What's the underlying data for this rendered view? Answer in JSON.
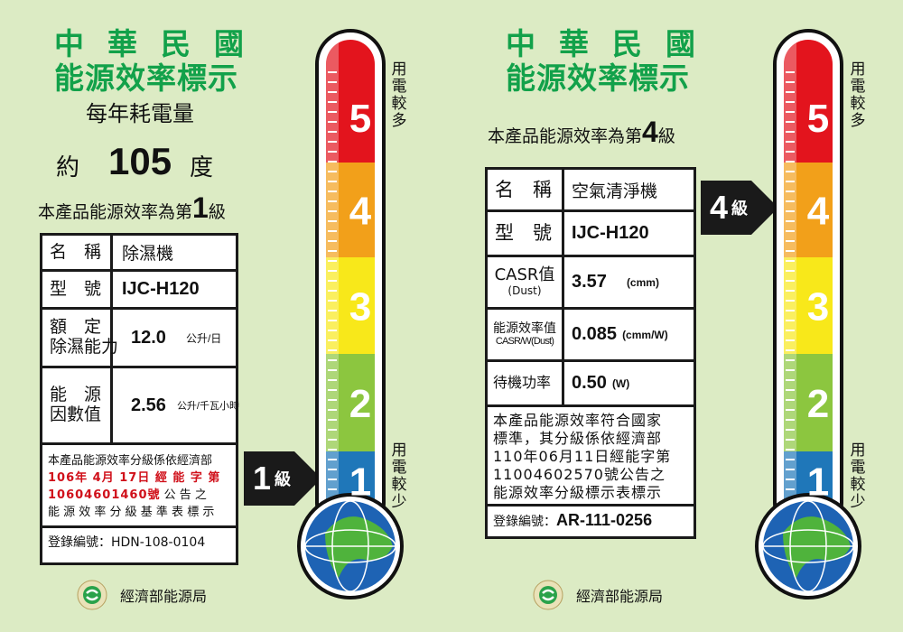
{
  "left": {
    "title_line1": "中華民國",
    "title_line2": "能源效率標示",
    "annual_label": "每年耗電量",
    "approx": "約",
    "annual_value": "105",
    "annual_unit": "度",
    "grade_prefix": "本產品能源效率為第",
    "grade": "1",
    "grade_suffix": "級",
    "rows": [
      {
        "label": "名　稱",
        "value": "除濕機"
      },
      {
        "label": "型　號",
        "value": "IJC-H120"
      },
      {
        "label1": "額　定",
        "label2": "除濕能力",
        "value": "12.0",
        "unit": "公升/日"
      },
      {
        "label1": "能　源",
        "label2": "因數值",
        "value": "2.56",
        "unit": "公升/千瓦小時"
      }
    ],
    "announce": {
      "line1": "本產品能源效率分級係依經濟部",
      "line2": "106年 4月 17日 經 能 字 第",
      "line3a": "10604601460號",
      "line3b": " 公 告 之",
      "line4": "能 源 效 率 分 級 基 準 表 標 示"
    },
    "registration": "登錄編號：HDN-108-0104",
    "arrow_grade": "1",
    "arrow_suffix": "級",
    "footer": "經濟部能源局"
  },
  "right": {
    "title_line1": "中華民國",
    "title_line2": "能源效率標示",
    "grade_prefix": "本產品能源效率為第",
    "grade": "4",
    "grade_suffix": "級",
    "rows": [
      {
        "label": "名　稱",
        "value": "空氣清淨機"
      },
      {
        "label": "型　號",
        "value": "IJC-H120"
      },
      {
        "label1": "CASR值",
        "label2": "(Dust)",
        "value": "3.57",
        "unit": "(cmm)"
      },
      {
        "label1": "能源效率值",
        "label2": "CASR/W(Dust)",
        "value": "0.085",
        "unit": "(cmm/W)"
      },
      {
        "label": "待機功率",
        "value": "0.50",
        "unit": "(W)"
      }
    ],
    "announce": [
      "本產品能源效率符合國家",
      "標準，其分級係依經濟部",
      "110年06月11日經能字第",
      "11004602570號公告之",
      "能源效率分級標示表標示"
    ],
    "reg_label": "登錄編號：",
    "reg_value": "AR-111-0256",
    "arrow_grade": "4",
    "arrow_suffix": "級",
    "footer": "經濟部能源局"
  },
  "thermometer": {
    "levels": [
      "5",
      "4",
      "3",
      "2",
      "1"
    ],
    "colors": [
      "#e3141d",
      "#f2a01a",
      "#f8e81a",
      "#8cc63f",
      "#1f77b9"
    ],
    "top_label": "用電較多",
    "bottom_label": "用電較少"
  }
}
